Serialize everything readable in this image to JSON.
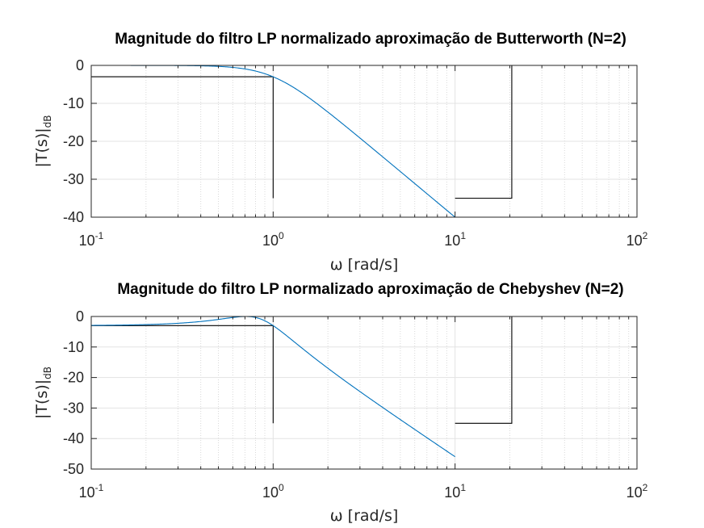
{
  "chart_data": [
    {
      "type": "line",
      "title": "Magnitude do filtro LP normalizado aproximação de Butterworth (N=2)",
      "xlabel": "ω [rad/s]",
      "ylabel_main": "|T(s)|",
      "ylabel_sub": "dB",
      "xscale": "log",
      "xlim": [
        0.1,
        100
      ],
      "ylim": [
        -40,
        0
      ],
      "yticks": [
        0,
        -10,
        -20,
        -30,
        -40
      ],
      "xticks": [
        {
          "base": "10",
          "exp": "-1"
        },
        {
          "base": "10",
          "exp": "0"
        },
        {
          "base": "10",
          "exp": "1"
        },
        {
          "base": "10",
          "exp": "2"
        }
      ],
      "grid": true,
      "response": {
        "filter": "butterworth",
        "N": 2,
        "x_range": [
          0.1,
          10
        ],
        "color": "#0072bd"
      },
      "template_lines": [
        {
          "x": [
            0.1,
            1,
            1
          ],
          "y": [
            -3,
            -3,
            -35
          ]
        },
        {
          "x": [
            10,
            20.5,
            20.5
          ],
          "y": [
            -35,
            -35,
            0
          ]
        }
      ],
      "template_color": "#000000"
    },
    {
      "type": "line",
      "title": "Magnitude do filtro LP normalizado aproximação de Chebyshev (N=2)",
      "xlabel": "ω [rad/s]",
      "ylabel_main": "|T(s)|",
      "ylabel_sub": "dB",
      "xscale": "log",
      "xlim": [
        0.1,
        100
      ],
      "ylim": [
        -50,
        0
      ],
      "yticks": [
        0,
        -10,
        -20,
        -30,
        -40,
        -50
      ],
      "xticks": [
        {
          "base": "10",
          "exp": "-1"
        },
        {
          "base": "10",
          "exp": "0"
        },
        {
          "base": "10",
          "exp": "1"
        },
        {
          "base": "10",
          "exp": "2"
        }
      ],
      "grid": true,
      "response": {
        "filter": "chebyshev",
        "N": 2,
        "ripple_db": 3,
        "x_range": [
          0.1,
          10
        ],
        "color": "#0072bd"
      },
      "template_lines": [
        {
          "x": [
            0.1,
            1,
            1
          ],
          "y": [
            -3,
            -3,
            -35
          ]
        },
        {
          "x": [
            10,
            20.5,
            20.5
          ],
          "y": [
            -35,
            -35,
            0
          ]
        }
      ],
      "template_color": "#000000"
    }
  ]
}
